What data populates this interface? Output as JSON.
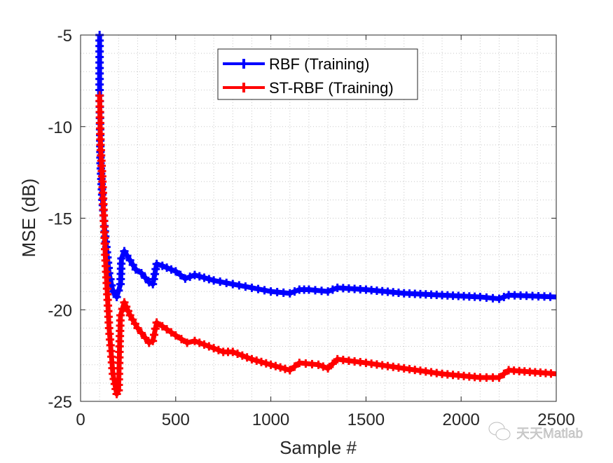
{
  "chart_data": {
    "type": "line",
    "title": "",
    "xlabel": "Sample #",
    "ylabel": "MSE (dB)",
    "xlim": [
      0,
      2500
    ],
    "ylim": [
      -25,
      -5
    ],
    "xticks": [
      0,
      500,
      1000,
      1500,
      2000,
      2500
    ],
    "yticks": [
      -5,
      -10,
      -15,
      -20,
      -25
    ],
    "grid": "on (major solid ticks, minor dotted)",
    "legend_placement": "top-center",
    "series": [
      {
        "name": "RBF (Training)",
        "color": "#0000ff",
        "marker": "+",
        "x": [
          100,
          100,
          105,
          115,
          130,
          150,
          170,
          190,
          210,
          215,
          230,
          260,
          290,
          320,
          360,
          380,
          400,
          430,
          500,
          550,
          600,
          700,
          800,
          900,
          1000,
          1100,
          1150,
          1200,
          1300,
          1350,
          1500,
          1700,
          1900,
          2100,
          2200,
          2250,
          2500
        ],
        "y": [
          -5,
          -8,
          -12,
          -14,
          -16,
          -18,
          -19,
          -19.3,
          -18.6,
          -17.2,
          -16.8,
          -17.3,
          -17.8,
          -18,
          -18.5,
          -18.6,
          -17.5,
          -17.6,
          -17.9,
          -18.3,
          -18.1,
          -18.4,
          -18.6,
          -18.8,
          -19,
          -19.1,
          -18.9,
          -18.9,
          -19,
          -18.8,
          -18.9,
          -19.1,
          -19.2,
          -19.3,
          -19.4,
          -19.2,
          -19.3
        ]
      },
      {
        "name": "ST-RBF (Training)",
        "color": "#ff0000",
        "marker": "+",
        "x": [
          100,
          105,
          115,
          130,
          150,
          170,
          190,
          200,
          205,
          210,
          230,
          260,
          300,
          360,
          380,
          400,
          430,
          500,
          560,
          600,
          700,
          750,
          800,
          900,
          1000,
          1100,
          1150,
          1250,
          1300,
          1350,
          1500,
          1700,
          1900,
          2100,
          2200,
          2250,
          2500
        ],
        "y": [
          -8.3,
          -11,
          -13,
          -17,
          -21,
          -23.5,
          -24.6,
          -24.4,
          -22,
          -20.3,
          -19.6,
          -20.3,
          -21,
          -21.8,
          -21.7,
          -20.7,
          -20.9,
          -21.4,
          -21.8,
          -21.7,
          -22.1,
          -22.3,
          -22.3,
          -22.7,
          -23,
          -23.3,
          -22.9,
          -23,
          -23.2,
          -22.7,
          -22.9,
          -23.2,
          -23.5,
          -23.7,
          -23.7,
          -23.3,
          -23.5
        ]
      }
    ]
  },
  "watermark": "天天Matlab"
}
